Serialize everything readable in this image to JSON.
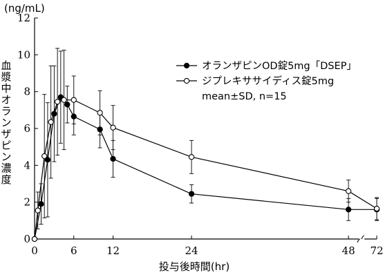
{
  "chart_data": {
    "type": "line",
    "y_unit": "(ng/mL)",
    "ylabel": "血漿中オランザピン濃度",
    "xlabel": "投与後時間(hr)",
    "x_ticks": [
      0,
      6,
      12,
      24,
      48,
      72
    ],
    "y_ticks": [
      0,
      2,
      4,
      6,
      8,
      10,
      12
    ],
    "ylim": [
      0,
      12
    ],
    "x_axis_break": "between 48 and 72",
    "legend": {
      "position": "top-right",
      "entries": [
        "オランザピンOD錠5mg「DSEP」",
        "ジプレキササイディス錠5mg"
      ],
      "note": "mean±SD, n=15"
    },
    "series": [
      {
        "name": "オランザピンOD錠5mg「DSEP」",
        "marker": "filled-circle",
        "x": [
          0,
          1,
          2,
          3,
          4,
          5,
          6,
          10,
          12,
          24,
          48,
          72
        ],
        "y": [
          0,
          1.9,
          4.3,
          6.8,
          7.7,
          7.3,
          6.65,
          5.95,
          4.35,
          2.45,
          1.6,
          1.6
        ],
        "sd": [
          0,
          1.1,
          3.1,
          2.6,
          2.5,
          1.0,
          1.0,
          1.0,
          1.0,
          0.5,
          0.6,
          0.6
        ]
      },
      {
        "name": "ジプレキササイディス錠5mg",
        "marker": "open-circle",
        "x": [
          0,
          0.5,
          1.5,
          2.5,
          3.5,
          4.5,
          6,
          10,
          12,
          24,
          48,
          72
        ],
        "y": [
          0,
          1.55,
          4.5,
          6.35,
          7.45,
          7.55,
          7.55,
          6.85,
          6.05,
          4.45,
          2.6,
          1.65
        ],
        "sd": [
          0,
          1.0,
          3.35,
          3.05,
          2.9,
          2.7,
          1.3,
          1.2,
          1.2,
          0.9,
          0.6,
          0.6
        ]
      }
    ]
  }
}
